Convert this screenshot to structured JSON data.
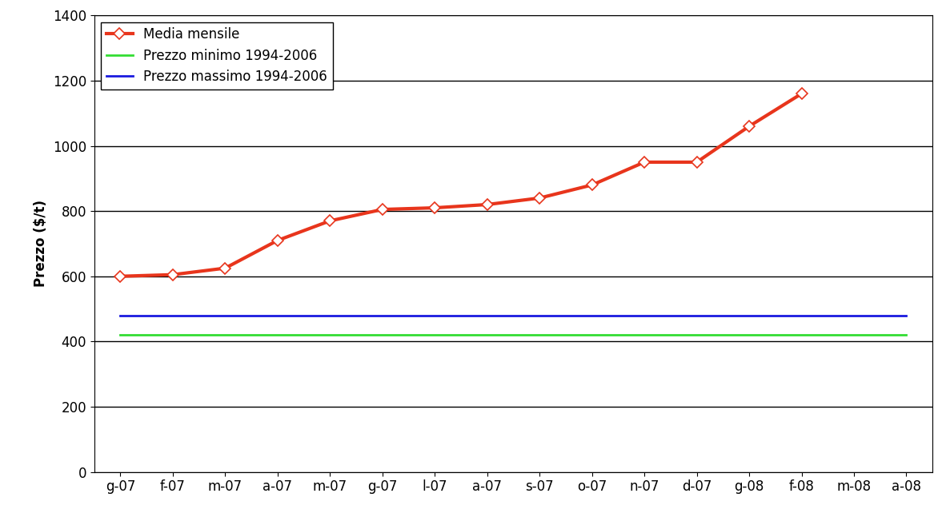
{
  "chart_data": {
    "type": "line",
    "y_label": "Prezzo ($/t)",
    "categories": [
      "g-07",
      "f-07",
      "m-07",
      "a-07",
      "m-07",
      "g-07",
      "l-07",
      "a-07",
      "s-07",
      "o-07",
      "n-07",
      "d-07",
      "g-08",
      "f-08",
      "m-08",
      "a-08"
    ],
    "series": [
      {
        "name": "Media mensile",
        "color": "#e8351c",
        "marker": "diamond",
        "line_style": "solid",
        "values": [
          600,
          605,
          625,
          710,
          770,
          805,
          810,
          820,
          840,
          880,
          950,
          950,
          1060,
          1160,
          null,
          null
        ]
      },
      {
        "name": "Prezzo minimo 1994-2006",
        "color": "#33dd33",
        "marker": "none",
        "line_style": "solid",
        "values": [
          420,
          420,
          420,
          420,
          420,
          420,
          420,
          420,
          420,
          420,
          420,
          420,
          420,
          420,
          420,
          420
        ]
      },
      {
        "name": "Prezzo massimo 1994-2006",
        "color": "#1a1adf",
        "marker": "none",
        "line_style": "solid",
        "values": [
          480,
          480,
          480,
          480,
          480,
          480,
          480,
          480,
          480,
          480,
          480,
          480,
          480,
          480,
          480,
          480
        ]
      }
    ],
    "ylim": [
      0,
      1400
    ],
    "yticks": [
      0,
      200,
      400,
      600,
      800,
      1000,
      1200,
      1400
    ],
    "grid": true,
    "legend": "upper left"
  }
}
